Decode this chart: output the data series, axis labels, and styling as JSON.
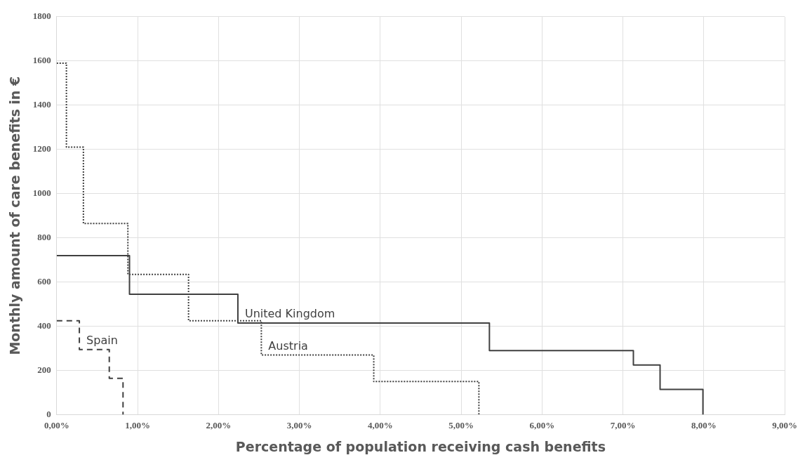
{
  "chart_data": {
    "type": "step",
    "xlabel": "Percentage of population receiving cash benefits",
    "ylabel": "Monthly amount of care benefits in €",
    "series": [
      {
        "name": "Austria",
        "color": "#404040",
        "line_style": "dotted",
        "x": [
          0,
          0.12,
          0.33,
          0.88,
          1.63,
          2.53,
          3.92,
          5.22
        ],
        "values": [
          1590,
          1210,
          865,
          635,
          425,
          270,
          150,
          0
        ]
      },
      {
        "name": "United Kingdom",
        "color": "#404040",
        "line_style": "solid",
        "x": [
          0,
          0.9,
          2.24,
          5.35,
          7.13,
          7.46,
          7.99
        ],
        "values": [
          720,
          545,
          415,
          290,
          225,
          115,
          0
        ]
      },
      {
        "name": "Spain",
        "color": "#404040",
        "line_style": "dashed",
        "x": [
          0,
          0.28,
          0.65,
          0.82
        ],
        "values": [
          425,
          295,
          165,
          0
        ]
      }
    ],
    "xlim": [
      0,
      9
    ],
    "xticks": [
      {
        "value": 0,
        "label": "0,00%"
      },
      {
        "value": 1,
        "label": "1,00%"
      },
      {
        "value": 2,
        "label": "2,00%"
      },
      {
        "value": 3,
        "label": "3,00%"
      },
      {
        "value": 4,
        "label": "4,00%"
      },
      {
        "value": 5,
        "label": "5,00%"
      },
      {
        "value": 6,
        "label": "6,00%"
      },
      {
        "value": 7,
        "label": "7,00%"
      },
      {
        "value": 8,
        "label": "8,00%"
      },
      {
        "value": 9,
        "label": "9,00%"
      }
    ],
    "ylim": [
      0,
      1800
    ],
    "yticks": [
      0,
      200,
      400,
      600,
      800,
      1000,
      1200,
      1400,
      1600,
      1800
    ],
    "grid": true,
    "legend": false,
    "marker": "none"
  }
}
